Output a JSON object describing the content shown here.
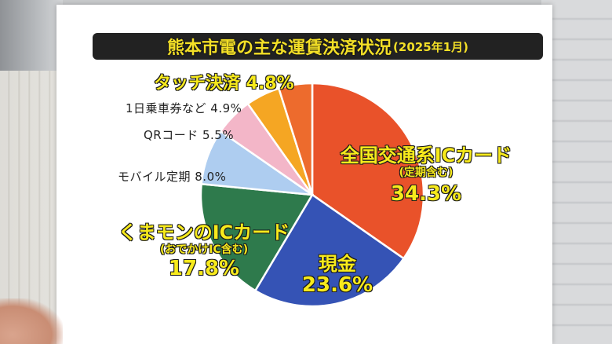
{
  "title": {
    "main": "熊本市電の主な運賃決済状況",
    "sub": "(2025年1月)"
  },
  "chart_data": {
    "type": "pie",
    "title": "熊本市電の主な運賃決済状況(2025年1月)",
    "slices": [
      {
        "name": "全国交通系ICカード",
        "note": "(定期含む)",
        "value": 34.3,
        "label": "34.3%",
        "color": "#e9522a"
      },
      {
        "name": "現金",
        "value": 23.6,
        "label": "23.6%",
        "color": "#3553b5"
      },
      {
        "name": "くまモンのICカード",
        "note": "(おでかけIC含む)",
        "value": 17.8,
        "label": "17.8%",
        "color": "#2e7a4c"
      },
      {
        "name": "モバイル定期",
        "value": 8.0,
        "label": "8.0%",
        "color": "#aecdf0"
      },
      {
        "name": "QRコード",
        "value": 5.5,
        "label": "5.5%",
        "color": "#f3b6c8"
      },
      {
        "name": "1日乗車券など",
        "value": 4.9,
        "label": "4.9%",
        "color": "#f5a623"
      },
      {
        "name": "タッチ決済",
        "value": 4.8,
        "label": "4.8%",
        "color": "#ed6b2d"
      }
    ]
  },
  "labels": {
    "zenkoku_name": "全国交通系ICカード",
    "zenkoku_note": "(定期含む)",
    "zenkoku_pct": "34.3%",
    "genkin_name": "現金",
    "genkin_pct": "23.6%",
    "kumamon_name": "くまモンのICカード",
    "kumamon_note": "(おでかけIC含む)",
    "kumamon_pct": "17.8%",
    "mobile": "モバイル定期 8.0%",
    "qr": "QRコード 5.5%",
    "ichinichi": "1日乗車券など 4.9%",
    "touch": "タッチ決済 4.8%"
  }
}
